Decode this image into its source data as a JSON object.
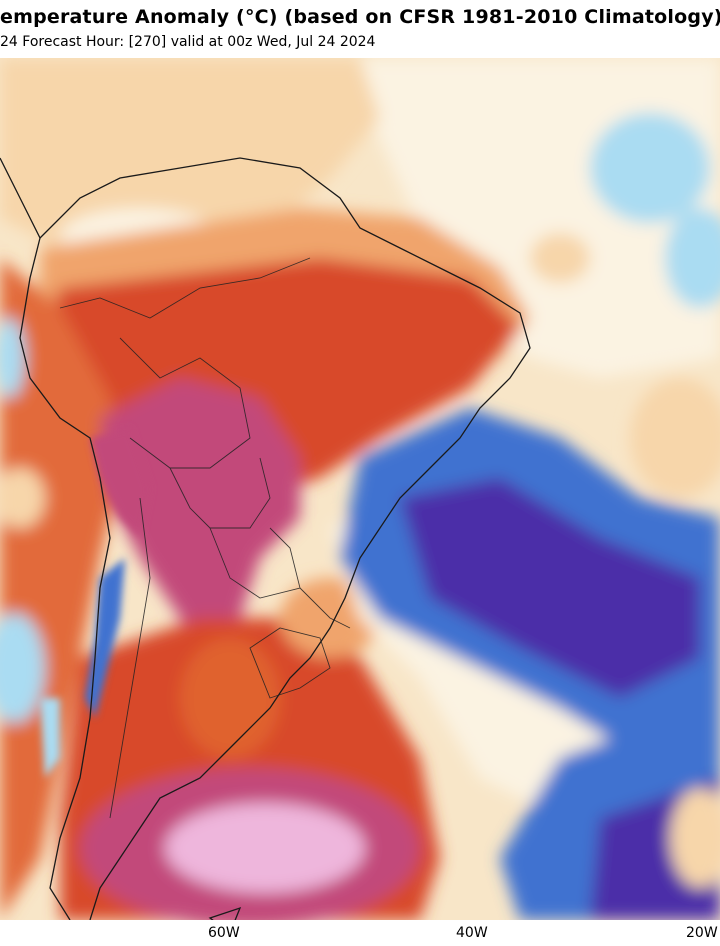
{
  "header": {
    "title": "emperature Anomaly (°C) (based on CFSR 1981-2010 Climatology)",
    "subtitle": "24   Forecast Hour: [270]   valid at 00z Wed, Jul 24 2024"
  },
  "axis": {
    "lon_labels": [
      "60W",
      "40W",
      "20W"
    ]
  },
  "colors": {
    "strong_warm": "#c24a7a",
    "warm": "#d84a2c",
    "mild_warm": "#f0a46c",
    "slight_warm": "#f7d6aa",
    "neutral": "#fbf3e2",
    "cool": "#aadcf2",
    "cold": "#3f72d0",
    "very_cold": "#4b2fa8",
    "extreme_warm": "#eeb6dc"
  }
}
